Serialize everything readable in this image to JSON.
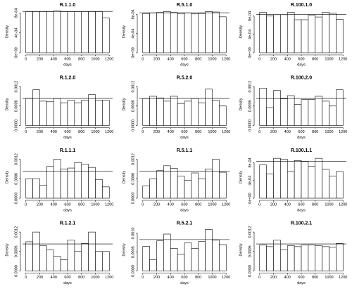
{
  "chart_data": [
    {
      "type": "histogram",
      "title": "R.1.1.0",
      "xlabel": "days",
      "ylabel": "Density",
      "bins": [
        0,
        100,
        200,
        300,
        400,
        500,
        600,
        700,
        800,
        900,
        1000,
        1100,
        1200
      ],
      "values": [
        0.00083,
        0.00083,
        0.00083,
        0.00083,
        0.00084,
        0.00083,
        0.00083,
        0.00083,
        0.00083,
        0.00083,
        0.00083,
        0.0007
      ],
      "hline": 0.000833,
      "xlim": [
        -48,
        1248
      ],
      "xticks": [
        0,
        200,
        400,
        600,
        800,
        1000,
        1200
      ],
      "ylim": [
        0,
        0.00085
      ],
      "yticks": [
        {
          "value": 0,
          "label": "0e+00"
        },
        {
          "value": 0.0004,
          "label": "4e-04"
        },
        {
          "value": 0.0008,
          "label": "8e-04"
        }
      ]
    },
    {
      "type": "histogram",
      "title": "R.5.1.0",
      "xlabel": "days",
      "ylabel": "Density",
      "bins": [
        0,
        100,
        200,
        300,
        400,
        500,
        600,
        700,
        800,
        900,
        1000,
        1100,
        1200
      ],
      "values": [
        0.00082,
        0.00083,
        0.00084,
        0.00086,
        0.00084,
        0.00082,
        0.00083,
        0.00081,
        0.00082,
        0.00086,
        0.00085,
        0.00075
      ],
      "hline": 0.000833,
      "xlim": [
        -48,
        1248
      ],
      "xticks": [
        0,
        200,
        400,
        600,
        800,
        1000,
        1200
      ],
      "ylim": [
        0,
        0.00088
      ],
      "yticks": [
        {
          "value": 0,
          "label": "0e+00"
        },
        {
          "value": 0.0004,
          "label": "4e-04"
        },
        {
          "value": 0.0008,
          "label": "8e-04"
        }
      ]
    },
    {
      "type": "histogram",
      "title": "R.100.1.0",
      "xlabel": "days",
      "ylabel": "Density",
      "bins": [
        0,
        100,
        200,
        300,
        400,
        500,
        600,
        700,
        800,
        900,
        1000,
        1100,
        1200
      ],
      "values": [
        0.00088,
        0.0008,
        0.00083,
        0.00083,
        0.00088,
        0.00072,
        0.00072,
        0.00082,
        0.00078,
        0.00088,
        0.00086,
        0.00073
      ],
      "hline": 0.000833,
      "xlim": [
        -48,
        1248
      ],
      "xticks": [
        0,
        200,
        400,
        600,
        800,
        1000,
        1200
      ],
      "ylim": [
        0,
        0.00092
      ],
      "yticks": [
        {
          "value": 0,
          "label": "0e+00"
        },
        {
          "value": 0.0004,
          "label": "4e-04"
        },
        {
          "value": 0.0008,
          "label": "8e-04"
        }
      ]
    },
    {
      "type": "histogram",
      "title": "R.1.2.0",
      "xlabel": "days",
      "ylabel": "Density",
      "bins": [
        0,
        100,
        200,
        300,
        400,
        500,
        600,
        700,
        800,
        900,
        1000,
        1100,
        1200
      ],
      "values": [
        0.00083,
        0.0011,
        0.00075,
        0.00073,
        0.00083,
        0.0007,
        0.00078,
        0.0007,
        0.00078,
        0.00095,
        0.00078,
        0.00078
      ],
      "hline": 0.000833,
      "xlim": [
        -48,
        1248
      ],
      "xticks": [
        0,
        200,
        400,
        600,
        800,
        1000,
        1200
      ],
      "ylim": [
        0,
        0.0013
      ],
      "yticks": [
        {
          "value": 0,
          "label": "0.0000"
        },
        {
          "value": 0.0006,
          "label": "0.0006"
        },
        {
          "value": 0.0012,
          "label": "0.0012"
        }
      ]
    },
    {
      "type": "histogram",
      "title": "R.5.2.0",
      "xlabel": "days",
      "ylabel": "Density",
      "bins": [
        0,
        100,
        200,
        300,
        400,
        500,
        600,
        700,
        800,
        900,
        1000,
        1100,
        1200
      ],
      "values": [
        0.00083,
        0.0009,
        0.00085,
        0.00075,
        0.0009,
        0.00068,
        0.00075,
        0.00083,
        0.0007,
        0.00112,
        0.00078,
        0.0006
      ],
      "hline": 0.000833,
      "xlim": [
        -48,
        1248
      ],
      "xticks": [
        0,
        200,
        400,
        600,
        800,
        1000,
        1200
      ],
      "ylim": [
        0,
        0.0013
      ],
      "yticks": [
        {
          "value": 0,
          "label": "0.0000"
        },
        {
          "value": 0.0006,
          "label": "0.0006"
        },
        {
          "value": 0.0012,
          "label": "0.0012"
        }
      ]
    },
    {
      "type": "histogram",
      "title": "R.100.2.0",
      "xlabel": "days",
      "ylabel": "Density",
      "bins": [
        0,
        100,
        200,
        300,
        400,
        500,
        600,
        700,
        800,
        900,
        1000,
        1100,
        1200
      ],
      "values": [
        0.00115,
        0.00055,
        0.00108,
        0.00082,
        0.00092,
        0.00065,
        0.0008,
        0.0008,
        0.0009,
        0.00075,
        0.0006,
        0.0011
      ],
      "hline": 0.000833,
      "xlim": [
        -48,
        1248
      ],
      "xticks": [
        0,
        200,
        400,
        600,
        800,
        1000,
        1200
      ],
      "ylim": [
        0,
        0.0013
      ],
      "yticks": [
        {
          "value": 0,
          "label": "0.0000"
        },
        {
          "value": 0.0006,
          "label": "0.0006"
        },
        {
          "value": 0.0012,
          "label": "0.0012"
        }
      ]
    },
    {
      "type": "histogram",
      "title": "R.1.1.1",
      "xlabel": "days",
      "ylabel": "Density",
      "bins": [
        0,
        100,
        200,
        300,
        400,
        500,
        600,
        700,
        800,
        900,
        1000,
        1100,
        1200
      ],
      "values": [
        0.0006,
        0.0006,
        0.0004,
        0.00098,
        0.0012,
        0.0009,
        0.00093,
        0.0011,
        0.00105,
        0.00095,
        0.00058,
        0.00035
      ],
      "hline": 0.000833,
      "xlim": [
        -48,
        1248
      ],
      "xticks": [
        0,
        200,
        400,
        600,
        800,
        1000,
        1200
      ],
      "ylim": [
        0,
        0.0013
      ],
      "yticks": [
        {
          "value": 0,
          "label": "0.0000"
        },
        {
          "value": 0.0006,
          "label": "0.0006"
        },
        {
          "value": 0.0012,
          "label": "0.0012"
        }
      ]
    },
    {
      "type": "histogram",
      "title": "R.5.1.1",
      "xlabel": "days",
      "ylabel": "Density",
      "bins": [
        0,
        100,
        200,
        300,
        400,
        500,
        600,
        700,
        800,
        900,
        1000,
        1100,
        1200
      ],
      "values": [
        0.00038,
        0.0006,
        0.00085,
        0.001,
        0.00092,
        0.00068,
        0.00055,
        0.00078,
        0.0006,
        0.0009,
        0.0012,
        0.0008
      ],
      "hline": 0.000833,
      "xlim": [
        -48,
        1248
      ],
      "xticks": [
        0,
        200,
        400,
        600,
        800,
        1000,
        1200
      ],
      "ylim": [
        0,
        0.0013
      ],
      "yticks": [
        {
          "value": 0,
          "label": "0.0000"
        },
        {
          "value": 0.0006,
          "label": "0.0006"
        },
        {
          "value": 0.0012,
          "label": "0.0012"
        }
      ]
    },
    {
      "type": "histogram",
      "title": "R.100.1.1",
      "xlabel": "days",
      "ylabel": "Density",
      "bins": [
        0,
        100,
        200,
        300,
        400,
        500,
        600,
        700,
        800,
        900,
        1000,
        1100,
        1200
      ],
      "values": [
        0.00075,
        0.00055,
        0.0009,
        0.00088,
        0.0006,
        0.00085,
        0.00083,
        0.00072,
        0.0009,
        0.00065,
        0.0005,
        0.0006
      ],
      "hline": 0.000833,
      "xlim": [
        -48,
        1248
      ],
      "xticks": [
        0,
        200,
        400,
        600,
        800,
        1000,
        1200
      ],
      "ylim": [
        0,
        0.00095
      ],
      "yticks": [
        {
          "value": 0,
          "label": "0e+00"
        },
        {
          "value": 0.0004,
          "label": "4e-04"
        },
        {
          "value": 0.0008,
          "label": "8e-04"
        }
      ]
    },
    {
      "type": "histogram",
      "title": "R.1.2.1",
      "xlabel": "days",
      "ylabel": "Density",
      "bins": [
        0,
        100,
        200,
        300,
        400,
        500,
        600,
        700,
        800,
        900,
        1000,
        1100,
        1200
      ],
      "values": [
        0.0009,
        0.0012,
        0.00078,
        0.00065,
        0.00045,
        0.00035,
        0.00095,
        0.0006,
        0.00085,
        0.0012,
        0.0006,
        0.0006
      ],
      "hline": 0.000833,
      "xlim": [
        -48,
        1248
      ],
      "xticks": [
        0,
        200,
        400,
        600,
        800,
        1000,
        1200
      ],
      "ylim": [
        0,
        0.0013
      ],
      "yticks": [
        {
          "value": 0,
          "label": "0.0000"
        },
        {
          "value": 0.0006,
          "label": "0.0006"
        },
        {
          "value": 0.0012,
          "label": "0.0012"
        }
      ]
    },
    {
      "type": "histogram",
      "title": "R.5.2.1",
      "xlabel": "days",
      "ylabel": "Density",
      "bins": [
        0,
        100,
        200,
        300,
        400,
        500,
        600,
        700,
        800,
        900,
        1000,
        1100,
        1200
      ],
      "values": [
        0.00065,
        0.0003,
        0.0008,
        0.00098,
        0.0006,
        0.00045,
        0.00075,
        0.0006,
        0.00078,
        0.0011,
        0.00082,
        0.0007
      ],
      "hline": 0.000833,
      "xlim": [
        -48,
        1248
      ],
      "xticks": [
        0,
        200,
        400,
        600,
        800,
        1000,
        1200
      ],
      "ylim": [
        0,
        0.00112
      ],
      "yticks": [
        {
          "value": 0,
          "label": "0.0000"
        },
        {
          "value": 0.0005,
          "label": "0.0005"
        },
        {
          "value": 0.001,
          "label": "0.0010"
        }
      ]
    },
    {
      "type": "histogram",
      "title": "R.100.2.1",
      "xlabel": "days",
      "ylabel": "Density",
      "bins": [
        0,
        100,
        200,
        300,
        400,
        500,
        600,
        700,
        800,
        900,
        1000,
        1100,
        1200
      ],
      "values": [
        0.0008,
        0.00075,
        0.00095,
        0.00065,
        0.00078,
        0.00075,
        0.0008,
        0.0008,
        0.00078,
        0.00075,
        0.00073,
        0.00085
      ],
      "hline": 0.000833,
      "xlim": [
        -48,
        1248
      ],
      "xticks": [
        0,
        200,
        400,
        600,
        800,
        1000,
        1200
      ],
      "ylim": [
        0,
        0.0013
      ],
      "yticks": [
        {
          "value": 0,
          "label": "0.0000"
        },
        {
          "value": 0.0006,
          "label": "0.0006"
        },
        {
          "value": 0.0012,
          "label": "0.0012"
        }
      ]
    }
  ]
}
